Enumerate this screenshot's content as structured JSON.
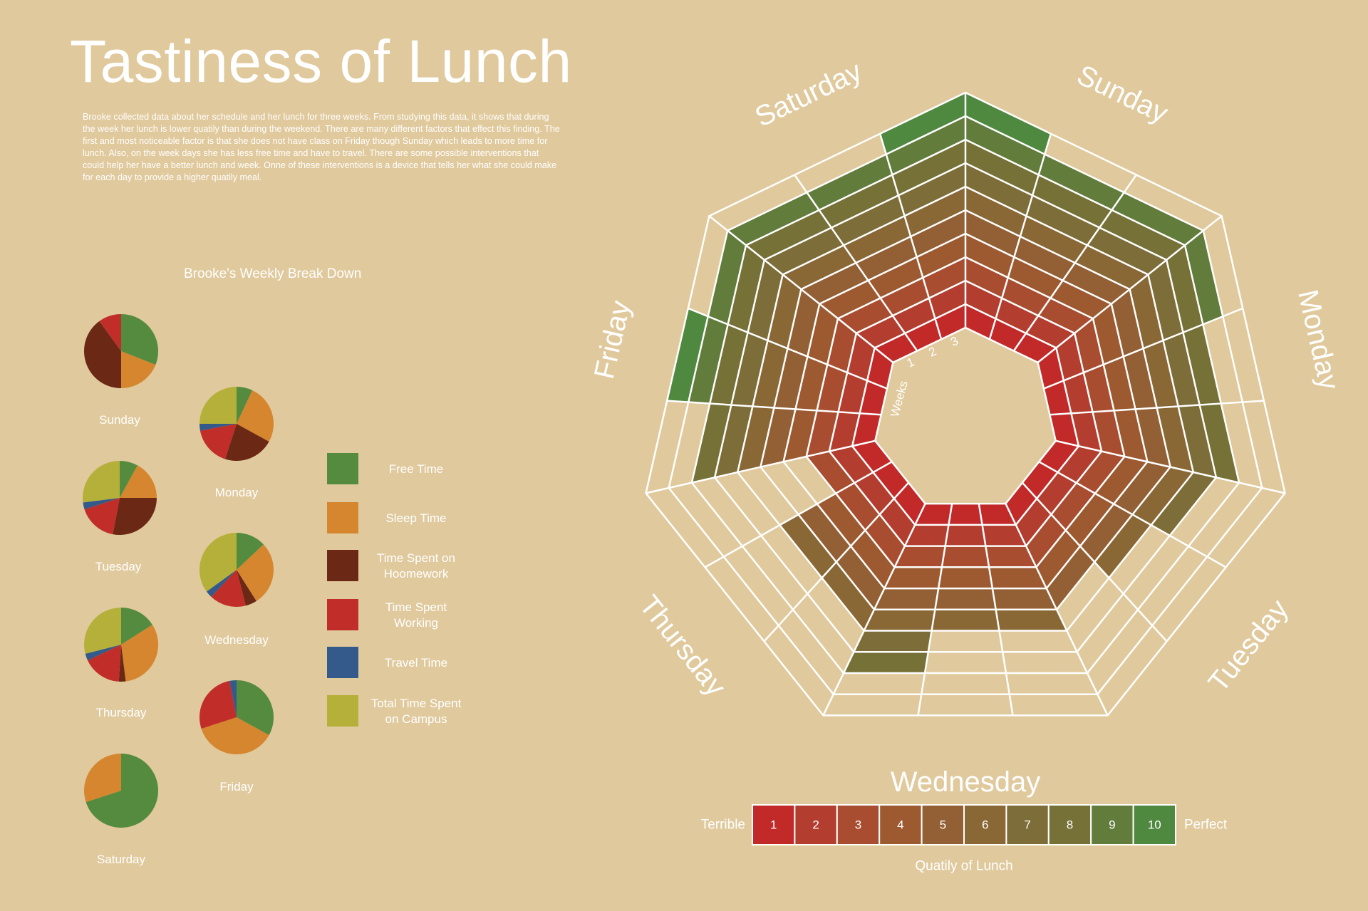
{
  "title": "Tastiness of Lunch",
  "intro": "Brooke collected data about her schedule and her lunch for three weeks. From studying this data, it shows that during the week her lunch is lower quatily than during the weekend. There are many different factors that effect this finding. The first and most noticeable factor is that she does not have class on Friday though Sunday which leads to more time for lunch. Also, on the week days she has less free time and have to travel.  There are some possible interventions that could help her have a better lunch and week. Onne of these interventions is a device that tells her what she could make for each day to provide a higher quatily meal.",
  "colors": {
    "background": "#e0c99c",
    "text": "#ffffff",
    "grid": "#ffffff",
    "free_time": "#548b3f",
    "sleep_time": "#d5862f",
    "homework": "#6b2815",
    "working": "#c12e29",
    "travel": "#335a8a",
    "campus": "#b5b03a",
    "scale": [
      "#c22a2a",
      "#b33d2e",
      "#a94d30",
      "#9d5a31",
      "#935f34",
      "#896836",
      "#7d6d38",
      "#757137",
      "#627c3c",
      "#4f8940"
    ]
  },
  "chart_data": [
    {
      "type": "pie",
      "title": "Brooke's Weekly Break Down",
      "legend": [
        {
          "key": "free_time",
          "label": "Free Time"
        },
        {
          "key": "sleep_time",
          "label": "Sleep Time"
        },
        {
          "key": "homework",
          "label": "Time Spent on Hoomework"
        },
        {
          "key": "working",
          "label": "Time Spent Working"
        },
        {
          "key": "travel",
          "label": "Travel Time"
        },
        {
          "key": "campus",
          "label": "Total Time Spent on Campus"
        }
      ],
      "pies": [
        {
          "day": "Sunday",
          "slices": [
            {
              "key": "free_time",
              "value": 31
            },
            {
              "key": "sleep_time",
              "value": 19
            },
            {
              "key": "homework",
              "value": 40
            },
            {
              "key": "working",
              "value": 10
            }
          ]
        },
        {
          "day": "Monday",
          "slices": [
            {
              "key": "free_time",
              "value": 7
            },
            {
              "key": "sleep_time",
              "value": 26
            },
            {
              "key": "homework",
              "value": 22
            },
            {
              "key": "working",
              "value": 17
            },
            {
              "key": "travel",
              "value": 3
            },
            {
              "key": "campus",
              "value": 25
            }
          ]
        },
        {
          "day": "Tuesday",
          "slices": [
            {
              "key": "free_time",
              "value": 8
            },
            {
              "key": "sleep_time",
              "value": 17
            },
            {
              "key": "homework",
              "value": 28
            },
            {
              "key": "working",
              "value": 17
            },
            {
              "key": "travel",
              "value": 3
            },
            {
              "key": "campus",
              "value": 27
            }
          ]
        },
        {
          "day": "Wednesday",
          "slices": [
            {
              "key": "free_time",
              "value": 13
            },
            {
              "key": "sleep_time",
              "value": 28
            },
            {
              "key": "homework",
              "value": 5
            },
            {
              "key": "working",
              "value": 16
            },
            {
              "key": "travel",
              "value": 3
            },
            {
              "key": "campus",
              "value": 35
            }
          ]
        },
        {
          "day": "Thursday",
          "slices": [
            {
              "key": "free_time",
              "value": 16
            },
            {
              "key": "sleep_time",
              "value": 32
            },
            {
              "key": "homework",
              "value": 3
            },
            {
              "key": "working",
              "value": 17
            },
            {
              "key": "travel",
              "value": 3
            },
            {
              "key": "campus",
              "value": 29
            }
          ]
        },
        {
          "day": "Friday",
          "slices": [
            {
              "key": "free_time",
              "value": 33
            },
            {
              "key": "sleep_time",
              "value": 37
            },
            {
              "key": "working",
              "value": 27
            },
            {
              "key": "travel",
              "value": 3
            }
          ]
        },
        {
          "day": "Saturday",
          "slices": [
            {
              "key": "free_time",
              "value": 70
            },
            {
              "key": "sleep_time",
              "value": 30
            }
          ]
        }
      ]
    },
    {
      "type": "radar",
      "title": "",
      "axis_label": "Weeks",
      "weeks": [
        "1",
        "2",
        "3"
      ],
      "range": [
        0,
        10
      ],
      "days": [
        {
          "day": "Sunday",
          "scores": [
            10,
            9,
            9
          ]
        },
        {
          "day": "Monday",
          "scores": [
            9,
            8,
            8
          ]
        },
        {
          "day": "Tuesday",
          "scores": [
            7,
            6,
            5
          ]
        },
        {
          "day": "Wednesday",
          "scores": [
            6,
            6,
            8
          ]
        },
        {
          "day": "Thursday",
          "scores": [
            6,
            6,
            3
          ]
        },
        {
          "day": "Friday",
          "scores": [
            8,
            10,
            9
          ]
        },
        {
          "day": "Saturday",
          "scores": [
            9,
            9,
            10
          ]
        }
      ]
    }
  ],
  "scale": {
    "left_label": "Terrible",
    "right_label": "Perfect",
    "caption": "Quatily of Lunch",
    "values": [
      "1",
      "2",
      "3",
      "4",
      "5",
      "6",
      "7",
      "8",
      "9",
      "10"
    ]
  }
}
